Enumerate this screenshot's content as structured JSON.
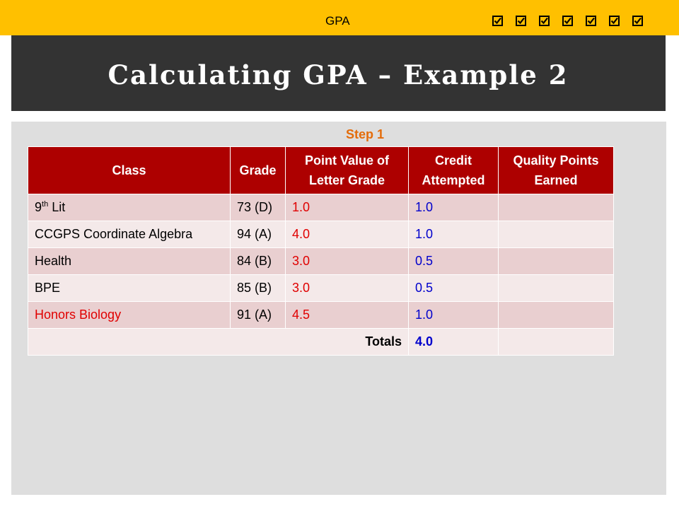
{
  "header": {
    "label": "GPA",
    "checkbox_count": 7,
    "checkbox_icon": "checked-box-icon",
    "accent_color": "#ffc000"
  },
  "title": "Calculating GPA – Example 2",
  "step_label": "Step 1",
  "table": {
    "headers": [
      "Class",
      "Grade",
      "Point Value of Letter Grade",
      "Credit Attempted",
      "Quality Points Earned"
    ],
    "rows": [
      {
        "class_prefix": "9",
        "class_sup": "th",
        "class_suffix": " Lit",
        "grade": "73 (D)",
        "point_value": "1.0",
        "credit": "1.0",
        "quality": ""
      },
      {
        "class": "CCGPS Coordinate Algebra",
        "grade": "94 (A)",
        "point_value": "4.0",
        "credit": "1.0",
        "quality": ""
      },
      {
        "class": "Health",
        "grade": "84 (B)",
        "point_value": "3.0",
        "credit": "0.5",
        "quality": ""
      },
      {
        "class": "BPE",
        "grade": "85 (B)",
        "point_value": "3.0",
        "credit": "0.5",
        "quality": ""
      },
      {
        "class": "Honors Biology",
        "grade": "91 (A)",
        "point_value": "4.5",
        "credit": "1.0",
        "quality": ""
      }
    ],
    "totals_label": "Totals",
    "totals_credit": "4.0",
    "totals_quality": ""
  },
  "colors": {
    "header_bg": "#ad0000",
    "title_bg": "#333333",
    "step_color": "#e46c0a",
    "point_value_color": "#e00000",
    "credit_color": "#0000cc",
    "honors_color": "#e00000"
  }
}
